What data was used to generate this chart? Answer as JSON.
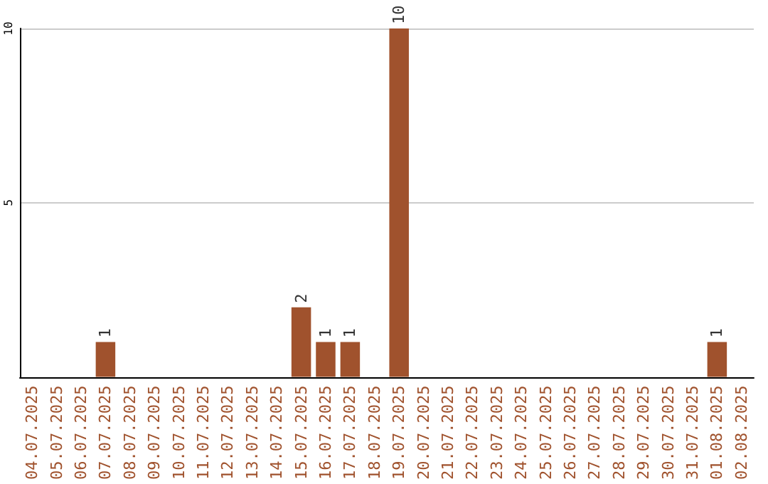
{
  "chart_data": {
    "type": "bar",
    "categories": [
      "04.07.2025",
      "05.07.2025",
      "06.07.2025",
      "07.07.2025",
      "08.07.2025",
      "09.07.2025",
      "10.07.2025",
      "11.07.2025",
      "12.07.2025",
      "13.07.2025",
      "14.07.2025",
      "15.07.2025",
      "16.07.2025",
      "17.07.2025",
      "18.07.2025",
      "19.07.2025",
      "20.07.2025",
      "21.07.2025",
      "22.07.2025",
      "23.07.2025",
      "24.07.2025",
      "25.07.2025",
      "26.07.2025",
      "27.07.2025",
      "28.07.2025",
      "29.07.2025",
      "30.07.2025",
      "31.07.2025",
      "01.08.2025",
      "02.08.2025"
    ],
    "values": [
      0,
      0,
      0,
      1,
      0,
      0,
      0,
      0,
      0,
      0,
      0,
      2,
      1,
      1,
      0,
      10,
      0,
      0,
      0,
      0,
      0,
      0,
      0,
      0,
      0,
      0,
      0,
      0,
      1,
      0
    ],
    "value_labels": [
      null,
      null,
      null,
      "1",
      null,
      null,
      null,
      null,
      null,
      null,
      null,
      "2",
      "1",
      "1",
      null,
      "10",
      null,
      null,
      null,
      null,
      null,
      null,
      null,
      null,
      null,
      null,
      null,
      null,
      "1",
      null
    ],
    "color": "#a0522d",
    "ylim": [
      0,
      10
    ],
    "yticks": [
      5,
      10
    ],
    "grid": "y"
  }
}
